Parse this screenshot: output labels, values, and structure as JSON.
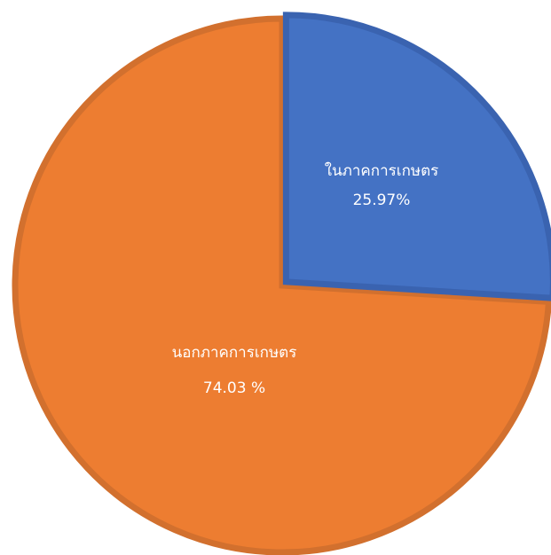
{
  "chart_data": {
    "type": "pie",
    "title": "",
    "slices": [
      {
        "name": "ในภาคการเกษตร",
        "value": 25.97,
        "label": "25.97%",
        "color": "#4472C4",
        "border": "#3A63B0",
        "exploded": true
      },
      {
        "name": "นอกภาคการเกษตร",
        "value": 74.03,
        "label": "74.03 %",
        "color": "#ED7D31",
        "border": "#D2702E",
        "exploded": false
      }
    ],
    "start_angle": "12 o'clock",
    "direction": "clockwise",
    "legend": "none",
    "data_labels": "inside"
  }
}
